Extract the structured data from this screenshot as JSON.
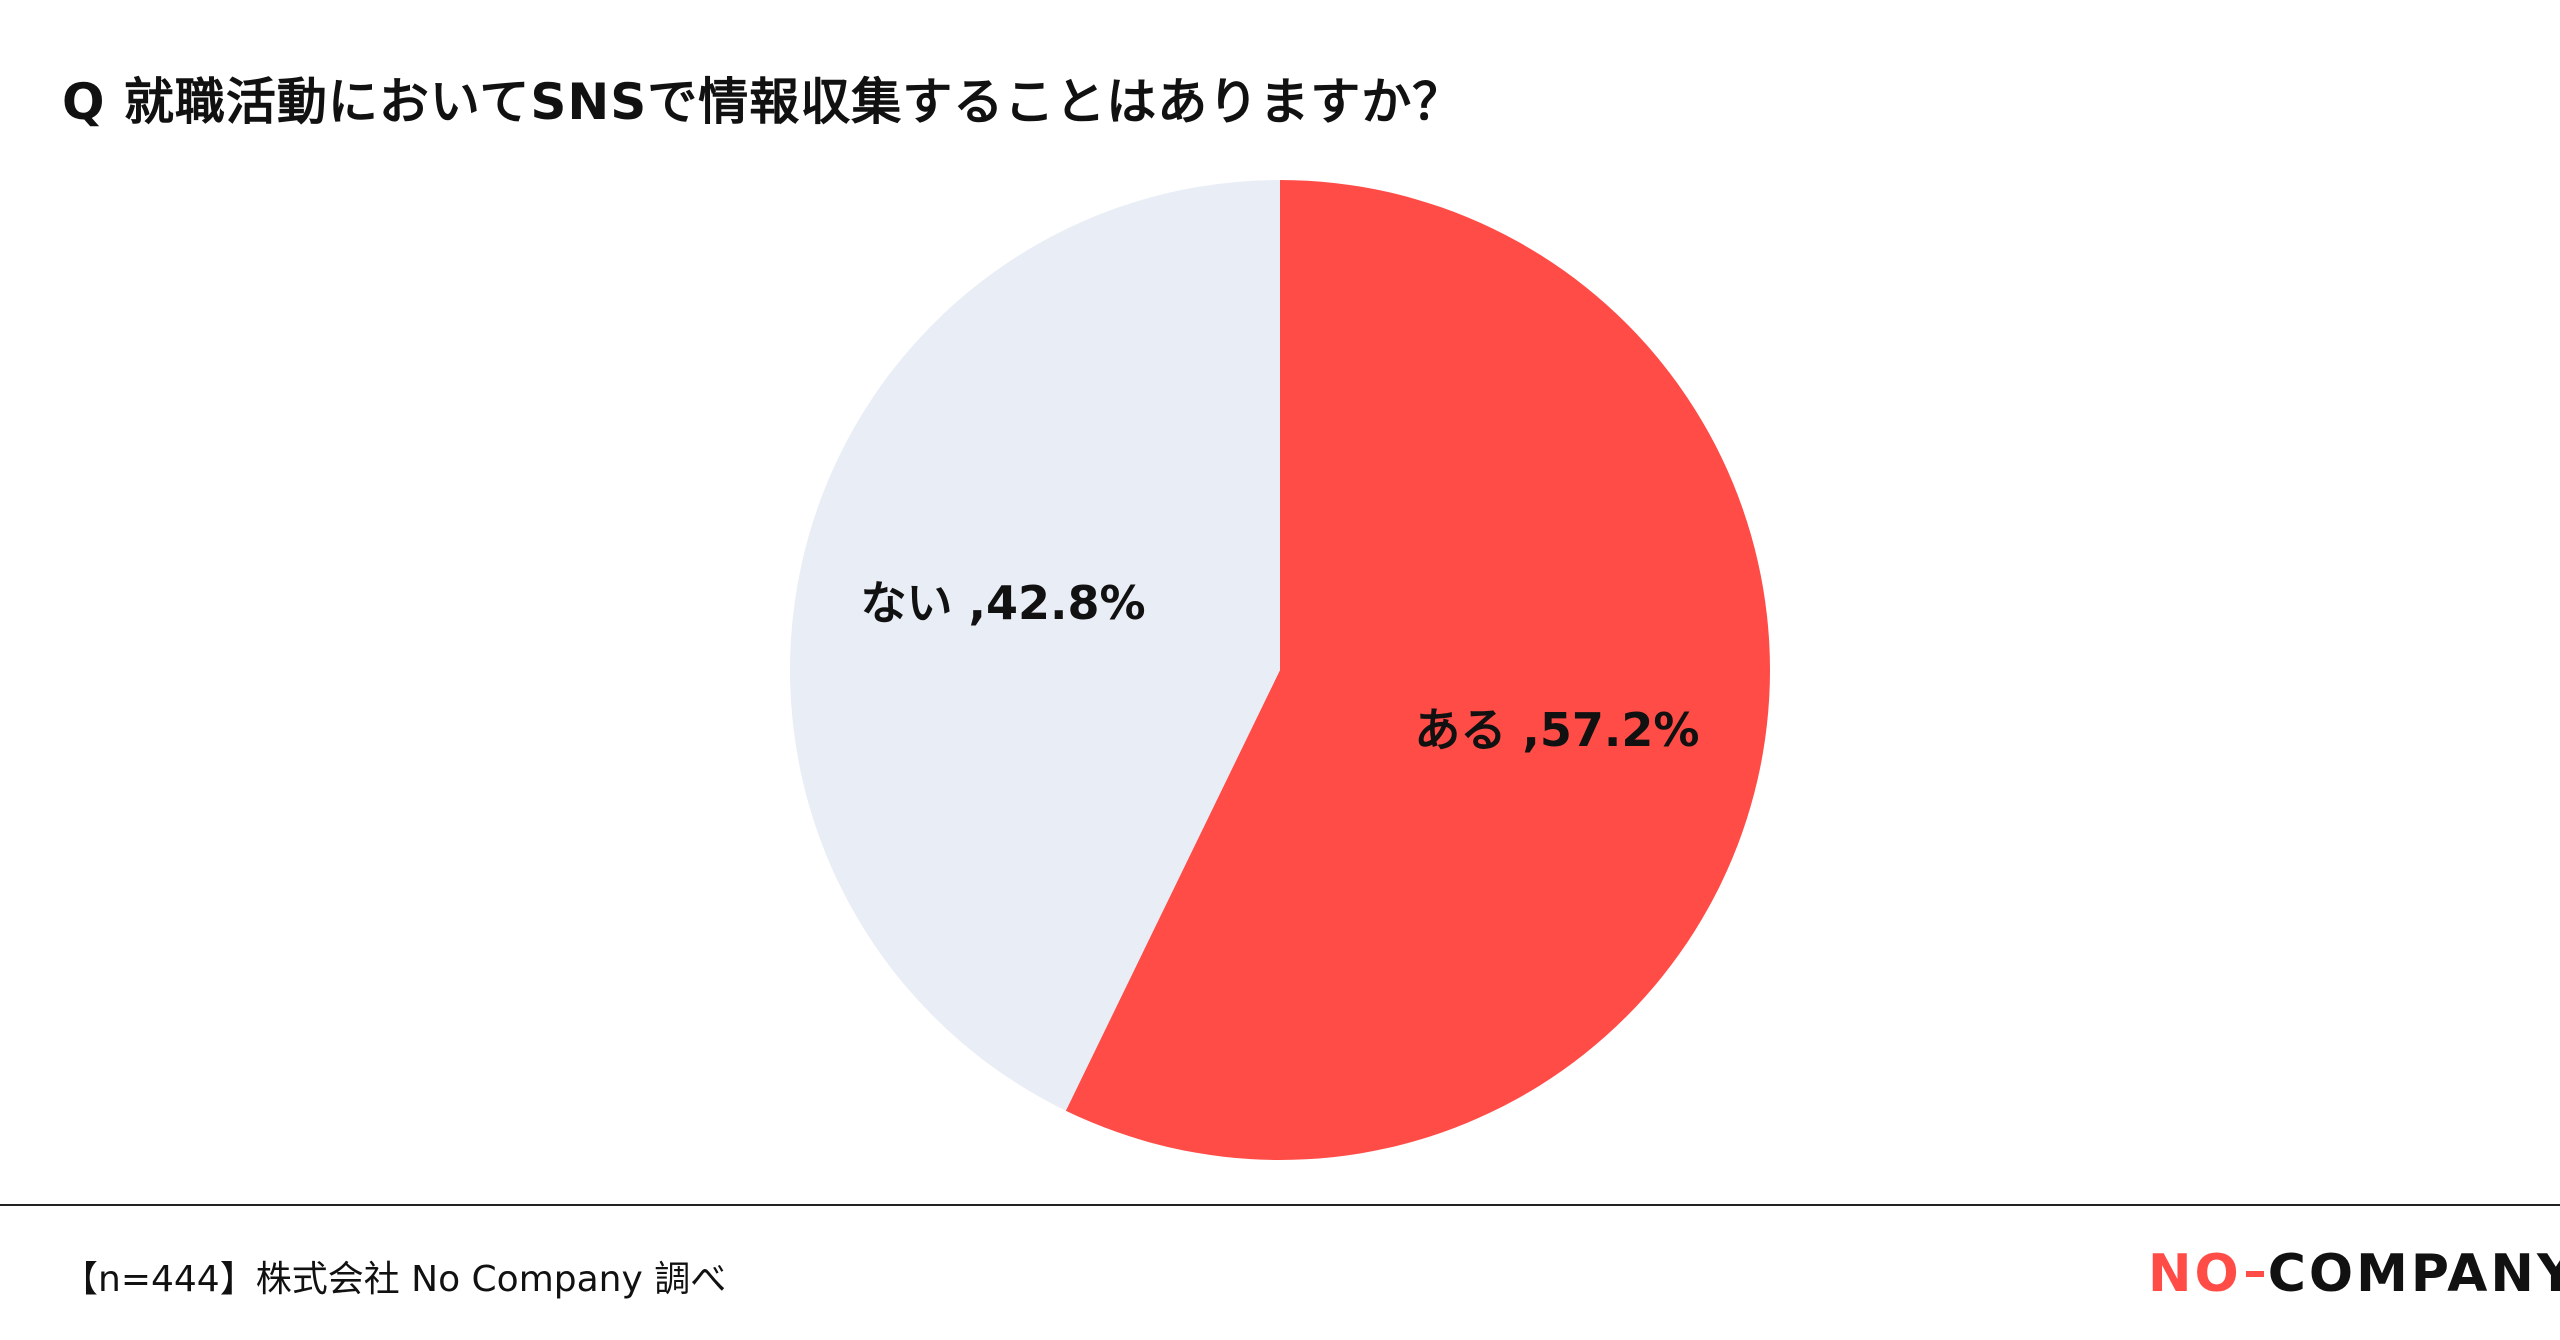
{
  "title": "Q 就職活動においてSNSで情報収集することはありますか？",
  "source": "【n=444】株式会社 No Company 調べ",
  "logo": {
    "part1": "NO",
    "part2": "COMPANY"
  },
  "colors": {
    "yes": "#ff4c47",
    "no": "#e9edf5"
  },
  "chart_data": {
    "type": "pie",
    "categories": [
      "ある",
      "ない"
    ],
    "values": [
      57.2,
      42.8
    ],
    "labels": [
      "ある ,57.2%",
      "ない ,42.8%"
    ],
    "start": "12 o'clock",
    "direction": "clockwise"
  }
}
